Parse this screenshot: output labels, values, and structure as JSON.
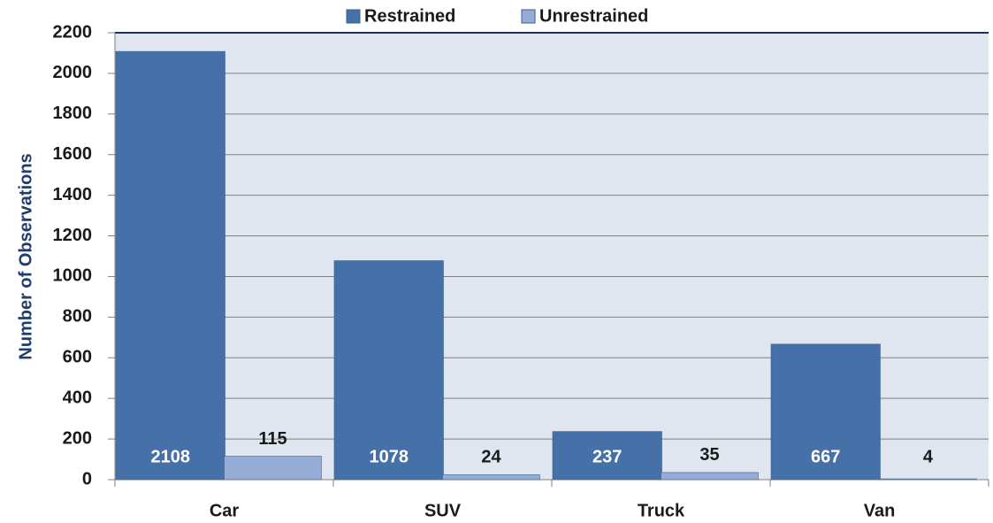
{
  "chart_data": {
    "type": "bar",
    "y_label": "Number of Observations",
    "categories": [
      "Car",
      "SUV",
      "Truck",
      "Van"
    ],
    "series": [
      {
        "name": "Restrained",
        "color": "#4671a8",
        "values": [
          2108,
          1078,
          237,
          667
        ]
      },
      {
        "name": "Unrestrained",
        "color": "#95acd7",
        "values": [
          115,
          24,
          35,
          4
        ]
      }
    ],
    "ylim": [
      0,
      2200
    ],
    "yticks": [
      0,
      200,
      400,
      600,
      800,
      1000,
      1200,
      1400,
      1600,
      1800,
      2000,
      2200
    ],
    "grid": true,
    "legend": "top"
  }
}
